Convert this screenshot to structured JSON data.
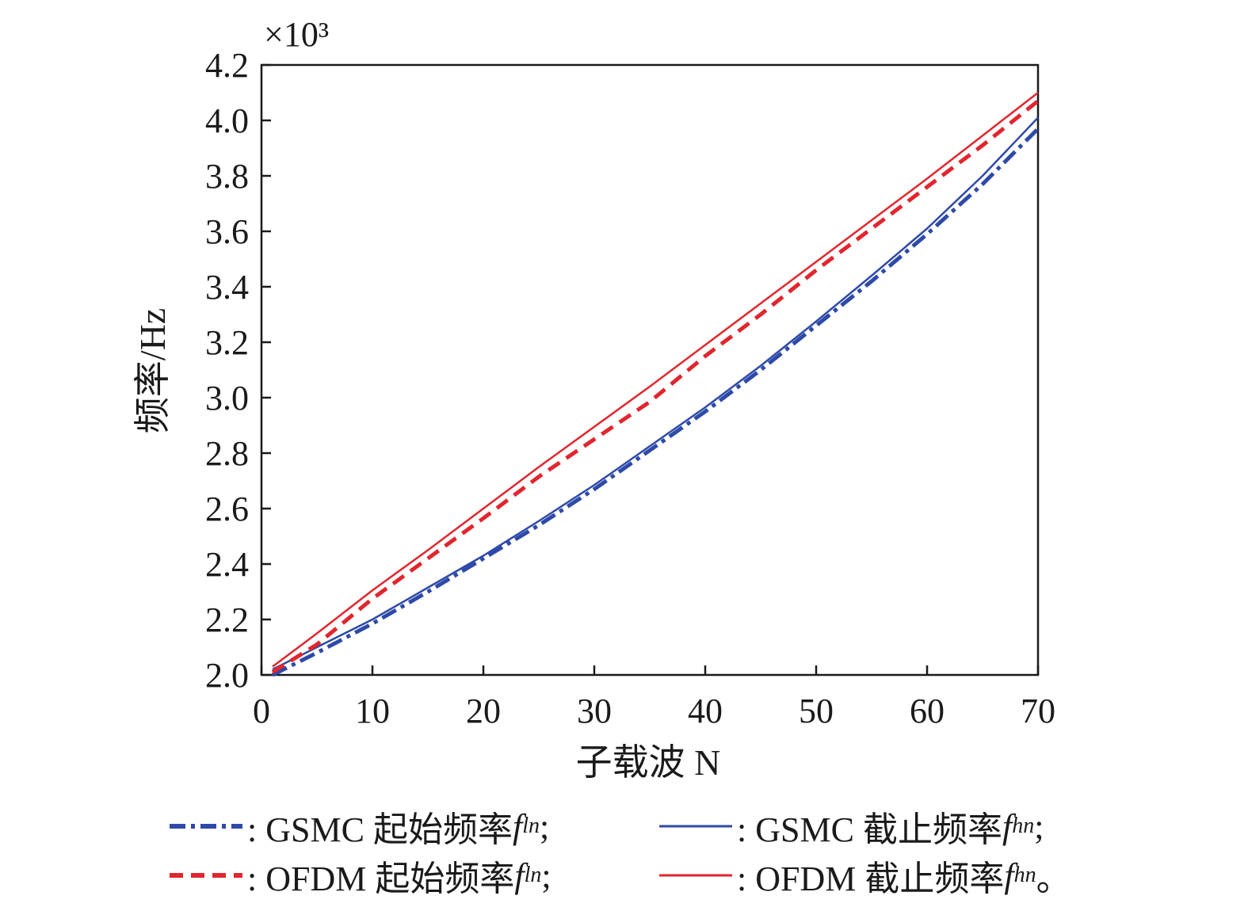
{
  "chart_data": {
    "type": "line",
    "xlabel": "子载波 N",
    "ylabel": "频率/Hz",
    "y_multiplier": "×10³",
    "xlim": [
      0,
      70
    ],
    "ylim": [
      2.0,
      4.2
    ],
    "x_ticks": [
      "0",
      "10",
      "20",
      "30",
      "40",
      "50",
      "60",
      "70"
    ],
    "y_ticks": [
      "2.0",
      "2.2",
      "2.4",
      "2.6",
      "2.8",
      "3.0",
      "3.2",
      "3.4",
      "3.6",
      "3.8",
      "4.0",
      "4.2"
    ],
    "grid": false,
    "legend_position": "bottom",
    "x": [
      1,
      5,
      10,
      15,
      20,
      25,
      30,
      35,
      40,
      45,
      50,
      55,
      60,
      65,
      70
    ],
    "series": [
      {
        "name": "GSMC 起始频率",
        "symbol_var": "f",
        "symbol_sub": "ln",
        "color": "#2e4aa8",
        "style": "dash-dot",
        "values": [
          2.0,
          2.08,
          2.185,
          2.3,
          2.42,
          2.54,
          2.67,
          2.81,
          2.95,
          3.1,
          3.26,
          3.42,
          3.59,
          3.77,
          3.97
        ]
      },
      {
        "name": "GSMC 截止频率",
        "symbol_var": "f",
        "symbol_sub": "hn",
        "color": "#2e4aa8",
        "style": "solid",
        "values": [
          2.02,
          2.1,
          2.2,
          2.315,
          2.43,
          2.555,
          2.685,
          2.825,
          2.965,
          3.115,
          3.275,
          3.44,
          3.61,
          3.8,
          4.01
        ]
      },
      {
        "name": "OFDM 起始频率",
        "symbol_var": "f",
        "symbol_sub": "ln",
        "color": "#e0262e",
        "style": "dashed",
        "values": [
          2.01,
          2.11,
          2.275,
          2.42,
          2.565,
          2.715,
          2.85,
          2.985,
          3.15,
          3.3,
          3.46,
          3.61,
          3.76,
          3.91,
          4.07
        ]
      },
      {
        "name": "OFDM 截止频率",
        "symbol_var": "f",
        "symbol_sub": "hn",
        "color": "#e0262e",
        "style": "solid",
        "values": [
          2.03,
          2.15,
          2.305,
          2.45,
          2.6,
          2.75,
          2.895,
          3.04,
          3.19,
          3.34,
          3.49,
          3.64,
          3.79,
          3.945,
          4.1
        ]
      }
    ]
  },
  "legend": {
    "items": [
      {
        "label": ": GSMC 起始频率 ",
        "var": "f",
        "sub": "ln",
        "end": ";"
      },
      {
        "label": ": GSMC 截止频率 ",
        "var": "f",
        "sub": "hn",
        "end": ";"
      },
      {
        "label": ": OFDM 起始频率 ",
        "var": "f",
        "sub": "ln",
        "end": ";"
      },
      {
        "label": ": OFDM 截止频率 ",
        "var": "f",
        "sub": "hn",
        "end": "。"
      }
    ]
  }
}
